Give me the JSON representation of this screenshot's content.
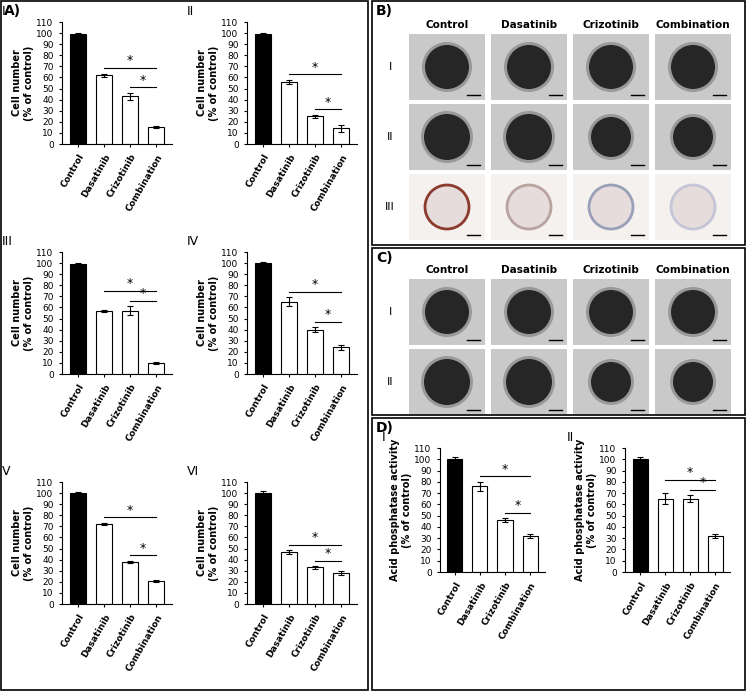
{
  "panel_labels": [
    "A)",
    "B)",
    "C)",
    "D)"
  ],
  "chart_data": [
    {
      "type": "bar",
      "title": "I",
      "ylabel": "Cell number\n(% of control)",
      "categories": [
        "Control",
        "Dasatinib",
        "Crizotinib",
        "Combination"
      ],
      "values": [
        99,
        62,
        43,
        15
      ],
      "errors": [
        1,
        1.5,
        3,
        1
      ],
      "colors": [
        "#000000",
        "#ffffff",
        "#ffffff",
        "#ffffff"
      ],
      "ylim": [
        0,
        110
      ],
      "yticks": [
        0,
        10,
        20,
        30,
        40,
        50,
        60,
        70,
        80,
        90,
        100,
        110
      ],
      "significance": [
        {
          "from": "Dasatinib",
          "to": "Combination",
          "label": "*"
        },
        {
          "from": "Crizotinib",
          "to": "Combination",
          "label": "*"
        }
      ]
    },
    {
      "type": "bar",
      "title": "II",
      "ylabel": "Cell number\n(% of control)",
      "categories": [
        "Control",
        "Dasatinib",
        "Crizotinib",
        "Combination"
      ],
      "values": [
        99,
        56,
        25,
        14
      ],
      "errors": [
        1,
        2,
        1.5,
        3
      ],
      "colors": [
        "#000000",
        "#ffffff",
        "#ffffff",
        "#ffffff"
      ],
      "ylim": [
        0,
        110
      ],
      "yticks": [
        0,
        10,
        20,
        30,
        40,
        50,
        60,
        70,
        80,
        90,
        100,
        110
      ],
      "significance": [
        {
          "from": "Dasatinib",
          "to": "Combination",
          "label": "*"
        },
        {
          "from": "Crizotinib",
          "to": "Combination",
          "label": "*"
        }
      ]
    },
    {
      "type": "bar",
      "title": "III",
      "ylabel": "Cell number\n(% of control)",
      "categories": [
        "Control",
        "Dasatinib",
        "Crizotinib",
        "Combination"
      ],
      "values": [
        99,
        57,
        57,
        10
      ],
      "errors": [
        1,
        1,
        4,
        1
      ],
      "colors": [
        "#000000",
        "#ffffff",
        "#ffffff",
        "#ffffff"
      ],
      "ylim": [
        0,
        110
      ],
      "yticks": [
        0,
        10,
        20,
        30,
        40,
        50,
        60,
        70,
        80,
        90,
        100,
        110
      ],
      "significance": [
        {
          "from": "Dasatinib",
          "to": "Combination",
          "label": "*"
        },
        {
          "from": "Crizotinib",
          "to": "Combination",
          "label": "*"
        }
      ]
    },
    {
      "type": "bar",
      "title": "IV",
      "ylabel": "Cell number\n(% of control)",
      "categories": [
        "Control",
        "Dasatinib",
        "Crizotinib",
        "Combination"
      ],
      "values": [
        100,
        65,
        40,
        24
      ],
      "errors": [
        1,
        4,
        2,
        2
      ],
      "colors": [
        "#000000",
        "#ffffff",
        "#ffffff",
        "#ffffff"
      ],
      "ylim": [
        0,
        110
      ],
      "yticks": [
        0,
        10,
        20,
        30,
        40,
        50,
        60,
        70,
        80,
        90,
        100,
        110
      ],
      "significance": [
        {
          "from": "Dasatinib",
          "to": "Combination",
          "label": "*"
        },
        {
          "from": "Crizotinib",
          "to": "Combination",
          "label": "*"
        }
      ]
    },
    {
      "type": "bar",
      "title": "V",
      "ylabel": "Cell number\n(% of control)",
      "categories": [
        "Control",
        "Dasatinib",
        "Crizotinib",
        "Combination"
      ],
      "values": [
        100,
        72,
        38,
        21
      ],
      "errors": [
        1,
        1,
        1,
        1
      ],
      "colors": [
        "#000000",
        "#ffffff",
        "#ffffff",
        "#ffffff"
      ],
      "ylim": [
        0,
        110
      ],
      "yticks": [
        0,
        10,
        20,
        30,
        40,
        50,
        60,
        70,
        80,
        90,
        100,
        110
      ],
      "significance": [
        {
          "from": "Dasatinib",
          "to": "Combination",
          "label": "*"
        },
        {
          "from": "Crizotinib",
          "to": "Combination",
          "label": "*"
        }
      ]
    },
    {
      "type": "bar",
      "title": "VI",
      "ylabel": "Cell number\n(% of control)",
      "categories": [
        "Control",
        "Dasatinib",
        "Crizotinib",
        "Combination"
      ],
      "values": [
        100,
        47,
        33,
        28
      ],
      "errors": [
        1.5,
        1.5,
        1,
        1.5
      ],
      "colors": [
        "#000000",
        "#ffffff",
        "#ffffff",
        "#ffffff"
      ],
      "ylim": [
        0,
        110
      ],
      "yticks": [
        0,
        10,
        20,
        30,
        40,
        50,
        60,
        70,
        80,
        90,
        100,
        110
      ],
      "significance": [
        {
          "from": "Dasatinib",
          "to": "Combination",
          "label": "*"
        },
        {
          "from": "Crizotinib",
          "to": "Combination",
          "label": "*"
        }
      ]
    },
    {
      "type": "bar",
      "title": "I",
      "ylabel": "Acid phosphatase activity\n(% of control)",
      "categories": [
        "Control",
        "Dasatinib",
        "Crizotinib",
        "Combination"
      ],
      "values": [
        100,
        76,
        46,
        32
      ],
      "errors": [
        2,
        4,
        1.5,
        1.5
      ],
      "colors": [
        "#000000",
        "#ffffff",
        "#ffffff",
        "#ffffff"
      ],
      "ylim": [
        0,
        110
      ],
      "yticks": [
        0,
        10,
        20,
        30,
        40,
        50,
        60,
        70,
        80,
        90,
        100,
        110
      ],
      "significance": [
        {
          "from": "Dasatinib",
          "to": "Combination",
          "label": "*"
        },
        {
          "from": "Crizotinib",
          "to": "Combination",
          "label": "*"
        }
      ]
    },
    {
      "type": "bar",
      "title": "II",
      "ylabel": "Acid phosphatase activity\n(% of control)",
      "categories": [
        "Control",
        "Dasatinib",
        "Crizotinib",
        "Combination"
      ],
      "values": [
        100,
        65,
        65,
        32
      ],
      "errors": [
        2,
        5,
        3,
        2
      ],
      "colors": [
        "#000000",
        "#ffffff",
        "#ffffff",
        "#ffffff"
      ],
      "ylim": [
        0,
        110
      ],
      "yticks": [
        0,
        10,
        20,
        30,
        40,
        50,
        60,
        70,
        80,
        90,
        100,
        110
      ],
      "significance": [
        {
          "from": "Dasatinib",
          "to": "Combination",
          "label": "*"
        },
        {
          "from": "Crizotinib",
          "to": "Combination",
          "label": "*"
        }
      ]
    }
  ],
  "image_panels": [
    {
      "columns": [
        "Control",
        "Dasatinib",
        "Crizotinib",
        "Combination"
      ],
      "rows": [
        "I",
        "II",
        "III"
      ]
    },
    {
      "columns": [
        "Control",
        "Dasatinib",
        "Crizotinib",
        "Combination"
      ],
      "rows": [
        "I",
        "II"
      ]
    }
  ]
}
